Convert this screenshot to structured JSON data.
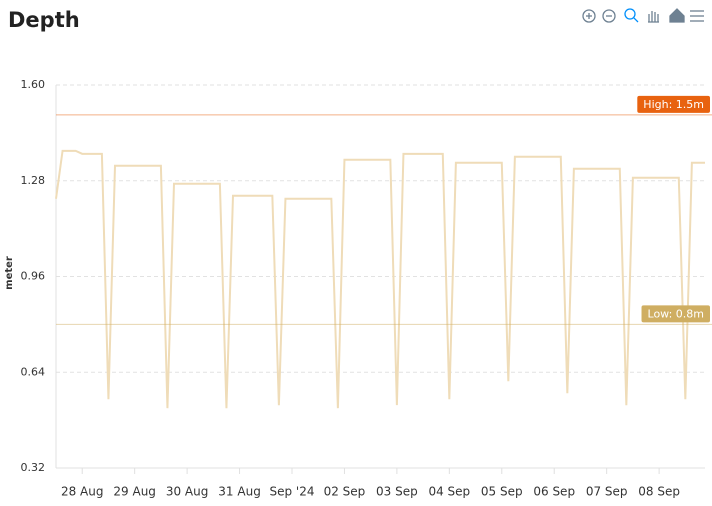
{
  "chart_data": {
    "type": "line",
    "title": "Depth",
    "y_label": "meter",
    "categories": [
      null,
      null,
      null,
      null,
      "28 Aug",
      null,
      null,
      null,
      null,
      null,
      null,
      null,
      "29 Aug",
      null,
      null,
      null,
      null,
      null,
      null,
      null,
      "30 Aug",
      null,
      null,
      null,
      null,
      null,
      null,
      null,
      "31 Aug",
      null,
      null,
      null,
      null,
      null,
      null,
      null,
      "Sep '24",
      null,
      null,
      null,
      null,
      null,
      null,
      null,
      "02 Sep",
      null,
      null,
      null,
      null,
      null,
      null,
      null,
      "03 Sep",
      null,
      null,
      null,
      null,
      null,
      null,
      null,
      "04 Sep",
      null,
      null,
      null,
      null,
      null,
      null,
      null,
      "05 Sep",
      null,
      null,
      null,
      null,
      null,
      null,
      null,
      "06 Sep",
      null,
      null,
      null,
      null,
      null,
      null,
      null,
      "07 Sep",
      null,
      null,
      null,
      null,
      null,
      null,
      null,
      "08 Sep",
      null,
      null,
      null,
      null,
      null,
      null,
      null
    ],
    "values": [
      1.22,
      1.38,
      1.38,
      1.38,
      1.37,
      1.37,
      1.37,
      1.37,
      0.55,
      1.33,
      1.33,
      1.33,
      1.33,
      1.33,
      1.33,
      1.33,
      1.33,
      0.52,
      1.27,
      1.27,
      1.27,
      1.27,
      1.27,
      1.27,
      1.27,
      1.27,
      0.52,
      1.23,
      1.23,
      1.23,
      1.23,
      1.23,
      1.23,
      1.23,
      0.53,
      1.22,
      1.22,
      1.22,
      1.22,
      1.22,
      1.22,
      1.22,
      1.22,
      0.52,
      1.35,
      1.35,
      1.35,
      1.35,
      1.35,
      1.35,
      1.35,
      1.35,
      0.53,
      1.37,
      1.37,
      1.37,
      1.37,
      1.37,
      1.37,
      1.37,
      0.55,
      1.34,
      1.34,
      1.34,
      1.34,
      1.34,
      1.34,
      1.34,
      1.34,
      0.61,
      1.36,
      1.36,
      1.36,
      1.36,
      1.36,
      1.36,
      1.36,
      1.36,
      0.57,
      1.32,
      1.32,
      1.32,
      1.32,
      1.32,
      1.32,
      1.32,
      1.32,
      0.53,
      1.29,
      1.29,
      1.29,
      1.29,
      1.29,
      1.29,
      1.29,
      1.29,
      0.55,
      1.34,
      1.34,
      1.34
    ],
    "color": "#efdcb8",
    "ylim": [
      0.32,
      1.6
    ],
    "yticks": [
      0.32,
      0.64,
      0.96,
      1.28,
      {
        "value": 1.6,
        "label": "1.60"
      }
    ],
    "grid": true,
    "annotations": [
      {
        "value": 1.5,
        "label": "High: 1.5m",
        "color": "#e8620f"
      },
      {
        "value": 0.8,
        "label": "Low: 0.8m",
        "color": "#cfae62"
      }
    ]
  }
}
